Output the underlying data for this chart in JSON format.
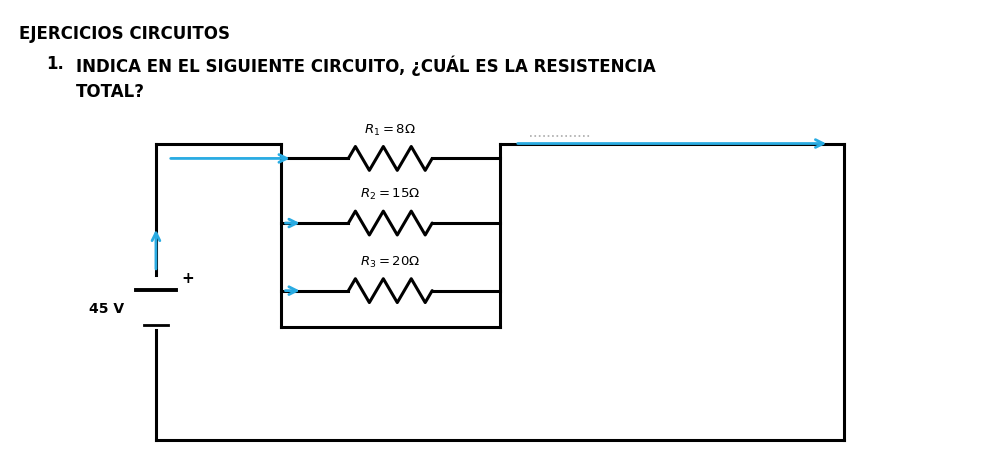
{
  "title": "EJERCICIOS CIRCUITOS",
  "question_num": "1.",
  "question_text": "INDICA EN EL SIGUIENTE CIRCUITO, ¿CUÁL ES LA RESISTENCIA\nTOTAL?",
  "bg_color": "#ffffff",
  "r1_label": "$R_1 = 8\\Omega$",
  "r2_label": "$R_2 = 15\\Omega$",
  "r3_label": "$R_3 = 20\\Omega$",
  "voltage_label": "45 V",
  "arrow_color": "#29abe2",
  "wire_color": "#000000",
  "line_width": 2.2,
  "dots_color": "#888888"
}
